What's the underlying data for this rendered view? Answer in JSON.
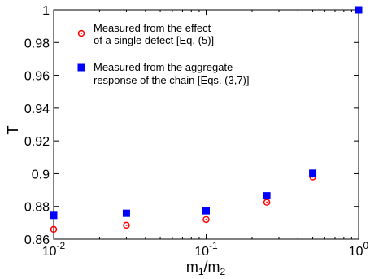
{
  "chart_data": {
    "type": "scatter",
    "x_scale": "log",
    "xlim": [
      0.01,
      1
    ],
    "ylim": [
      0.86,
      1
    ],
    "grid": false,
    "legend_placement": "top-left",
    "xlabel": {
      "main": "m",
      "sub1": "1",
      "slash": "/m",
      "sub2": "2"
    },
    "ylabel": "T",
    "x_ticks": [
      {
        "value": 0.01,
        "base": "10",
        "exp": "-2"
      },
      {
        "value": 0.1,
        "base": "10",
        "exp": "-1"
      },
      {
        "value": 1,
        "base": "10",
        "exp": "0"
      }
    ],
    "y_ticks": [
      {
        "value": 0.86,
        "label": "0.86"
      },
      {
        "value": 0.88,
        "label": "0.88"
      },
      {
        "value": 0.9,
        "label": "0.9"
      },
      {
        "value": 0.92,
        "label": "0.92"
      },
      {
        "value": 0.94,
        "label": "0.94"
      },
      {
        "value": 0.96,
        "label": "0.96"
      },
      {
        "value": 0.98,
        "label": "0.98"
      },
      {
        "value": 1,
        "label": "1"
      }
    ],
    "series": [
      {
        "name_line1": "Measured from the effect",
        "name_line2": "of a single defect [Eq. (5)]",
        "marker": "circle",
        "color": "#ff0000",
        "x": [
          0.01,
          0.03,
          0.1,
          0.25,
          0.5,
          1
        ],
        "y": [
          0.866,
          0.8685,
          0.872,
          0.8825,
          0.898,
          1.0
        ]
      },
      {
        "name_line1": "Measured from the aggregate",
        "name_line2": "response of the chain [Eqs. (3,7)]",
        "marker": "square",
        "color": "#0000ff",
        "x": [
          0.01,
          0.03,
          0.1,
          0.25,
          0.5,
          1
        ],
        "y": [
          0.8745,
          0.8758,
          0.8773,
          0.8865,
          0.9003,
          1.0
        ]
      }
    ]
  }
}
